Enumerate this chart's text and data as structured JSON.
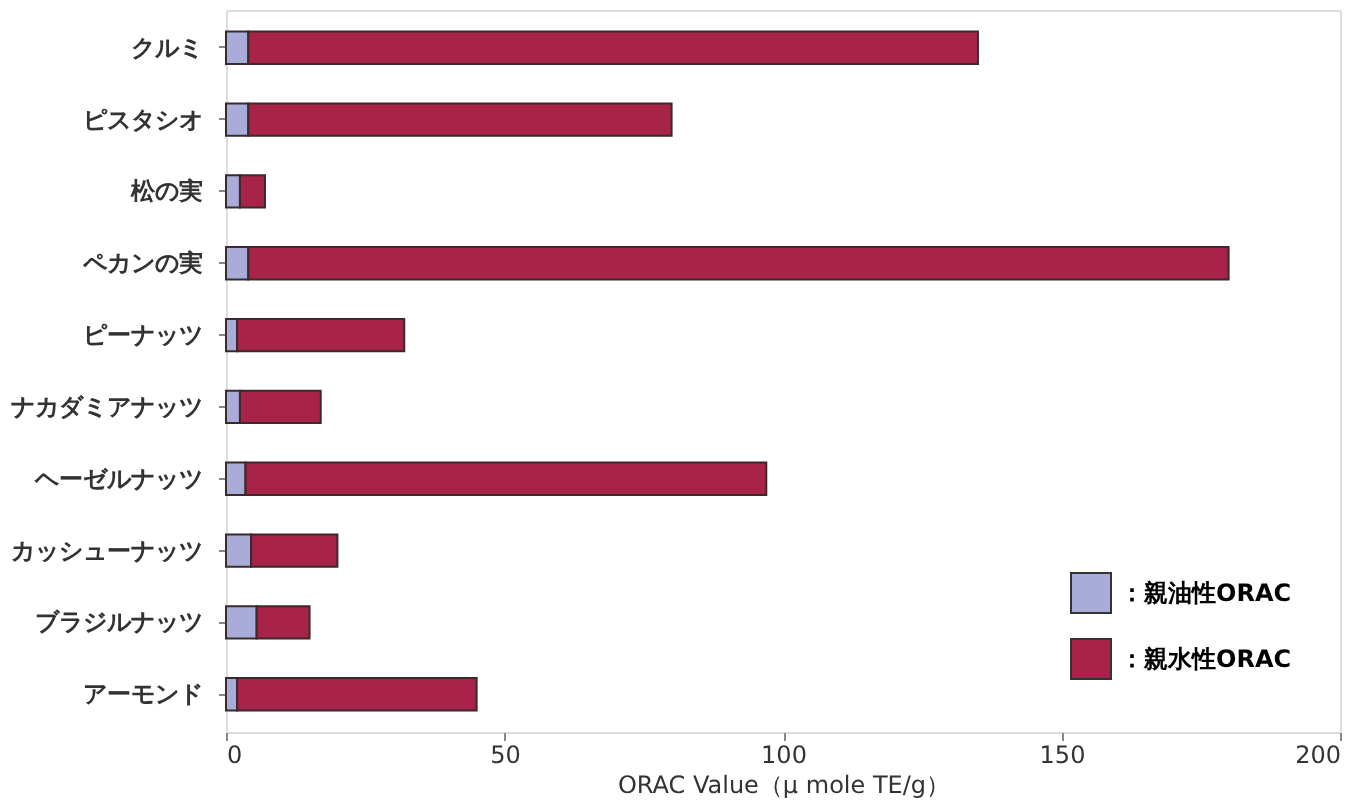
{
  "chart_data": {
    "type": "bar",
    "orientation": "horizontal",
    "stacked": true,
    "xlabel": "ORAC Value（μ mole TE/g）",
    "categories": [
      "クルミ",
      "ピスタシオ",
      "松の実",
      "ペカンの実",
      "ピーナッツ",
      "ナカダミアナッツ",
      "ヘーゼルナッツ",
      "カッシューナッツ",
      "ブラジルナッツ",
      "アーモンド"
    ],
    "series": [
      {
        "name": "：親油性ORAC",
        "color": "#a9acd8",
        "values": [
          4,
          4,
          2.5,
          4,
          2,
          2.5,
          3.5,
          4.5,
          5.5,
          2
        ]
      },
      {
        "name": "：親水性ORAC",
        "color": "#a8234a",
        "values": [
          131,
          76,
          4.5,
          176,
          30,
          14.5,
          93.5,
          15.5,
          9.5,
          43
        ]
      }
    ],
    "xlim": [
      0,
      200
    ],
    "xticks": [
      0,
      50,
      100,
      150,
      200
    ],
    "grid": false,
    "legend": "bottom right"
  }
}
